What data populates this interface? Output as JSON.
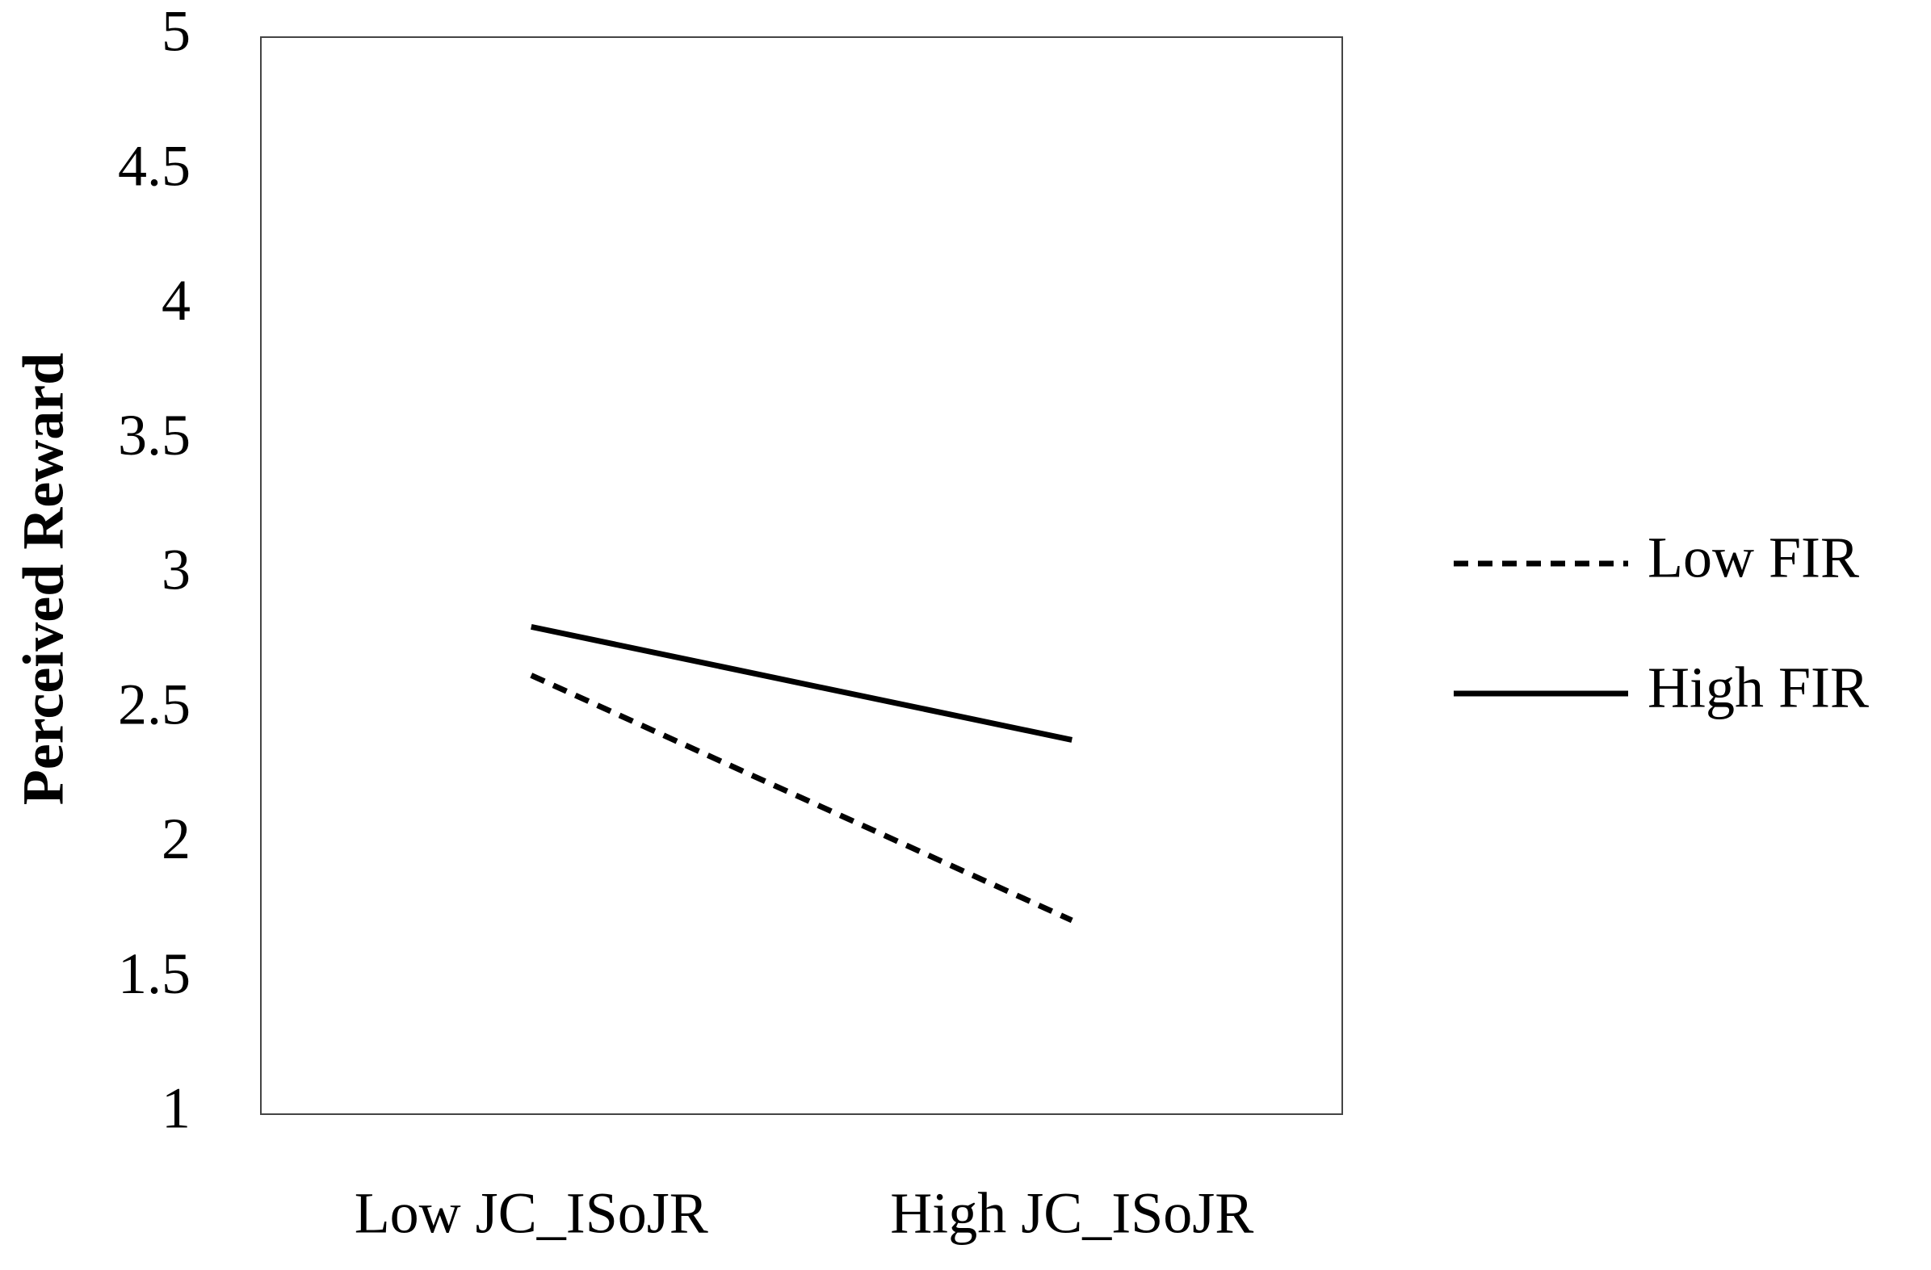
{
  "chart_data": {
    "type": "line",
    "y_label": "Perceived Reward",
    "categories": [
      "Low JC_ISoJR",
      "High JC_ISoJR"
    ],
    "series": [
      {
        "name": "Low FIR",
        "color": "#000000",
        "line_style": "dashed",
        "values": [
          2.63,
          1.72
        ]
      },
      {
        "name": "High FIR",
        "color": "#000000",
        "line_style": "solid",
        "values": [
          2.81,
          2.39
        ]
      }
    ],
    "ylim": [
      1,
      5
    ],
    "yticks": [
      1,
      1.5,
      2,
      2.5,
      3,
      3.5,
      4,
      4.5,
      5
    ],
    "grid": false,
    "legend": "right"
  }
}
